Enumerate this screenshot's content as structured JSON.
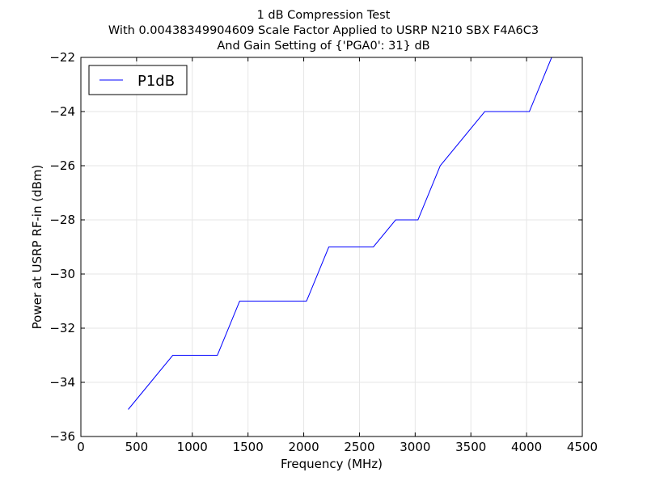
{
  "chart_data": {
    "type": "line",
    "title_lines": [
      "1 dB Compression Test",
      "With 0.00438349904609 Scale Factor Applied to USRP N210 SBX F4A6C3",
      "And Gain Setting of {'PGA0': 31} dB"
    ],
    "xlabel": "Frequency (MHz)",
    "ylabel": "Power at USRP RF-in (dBm)",
    "xlim": [
      0,
      4500
    ],
    "ylim": [
      -36,
      -22
    ],
    "xticks": [
      0,
      500,
      1000,
      1500,
      2000,
      2500,
      3000,
      3500,
      4000,
      4500
    ],
    "xtick_labels": [
      "0",
      "500",
      "1000",
      "1500",
      "2000",
      "2500",
      "3000",
      "3500",
      "4000",
      "4500"
    ],
    "yticks": [
      -36,
      -34,
      -32,
      -30,
      -28,
      -26,
      -24,
      -22
    ],
    "ytick_labels": [
      "−36",
      "−34",
      "−32",
      "−30",
      "−28",
      "−26",
      "−24",
      "−22"
    ],
    "grid": true,
    "legend_position": "top-left",
    "series": [
      {
        "name": "P1dB",
        "color": "#0000ff",
        "x": [
          425,
          825,
          1225,
          1425,
          2025,
          2225,
          2625,
          2825,
          3025,
          3225,
          3625,
          4025,
          4225
        ],
        "y": [
          -35,
          -33,
          -33,
          -31,
          -31,
          -29,
          -29,
          -28,
          -28,
          -26,
          -24,
          -24,
          -22
        ]
      }
    ]
  }
}
